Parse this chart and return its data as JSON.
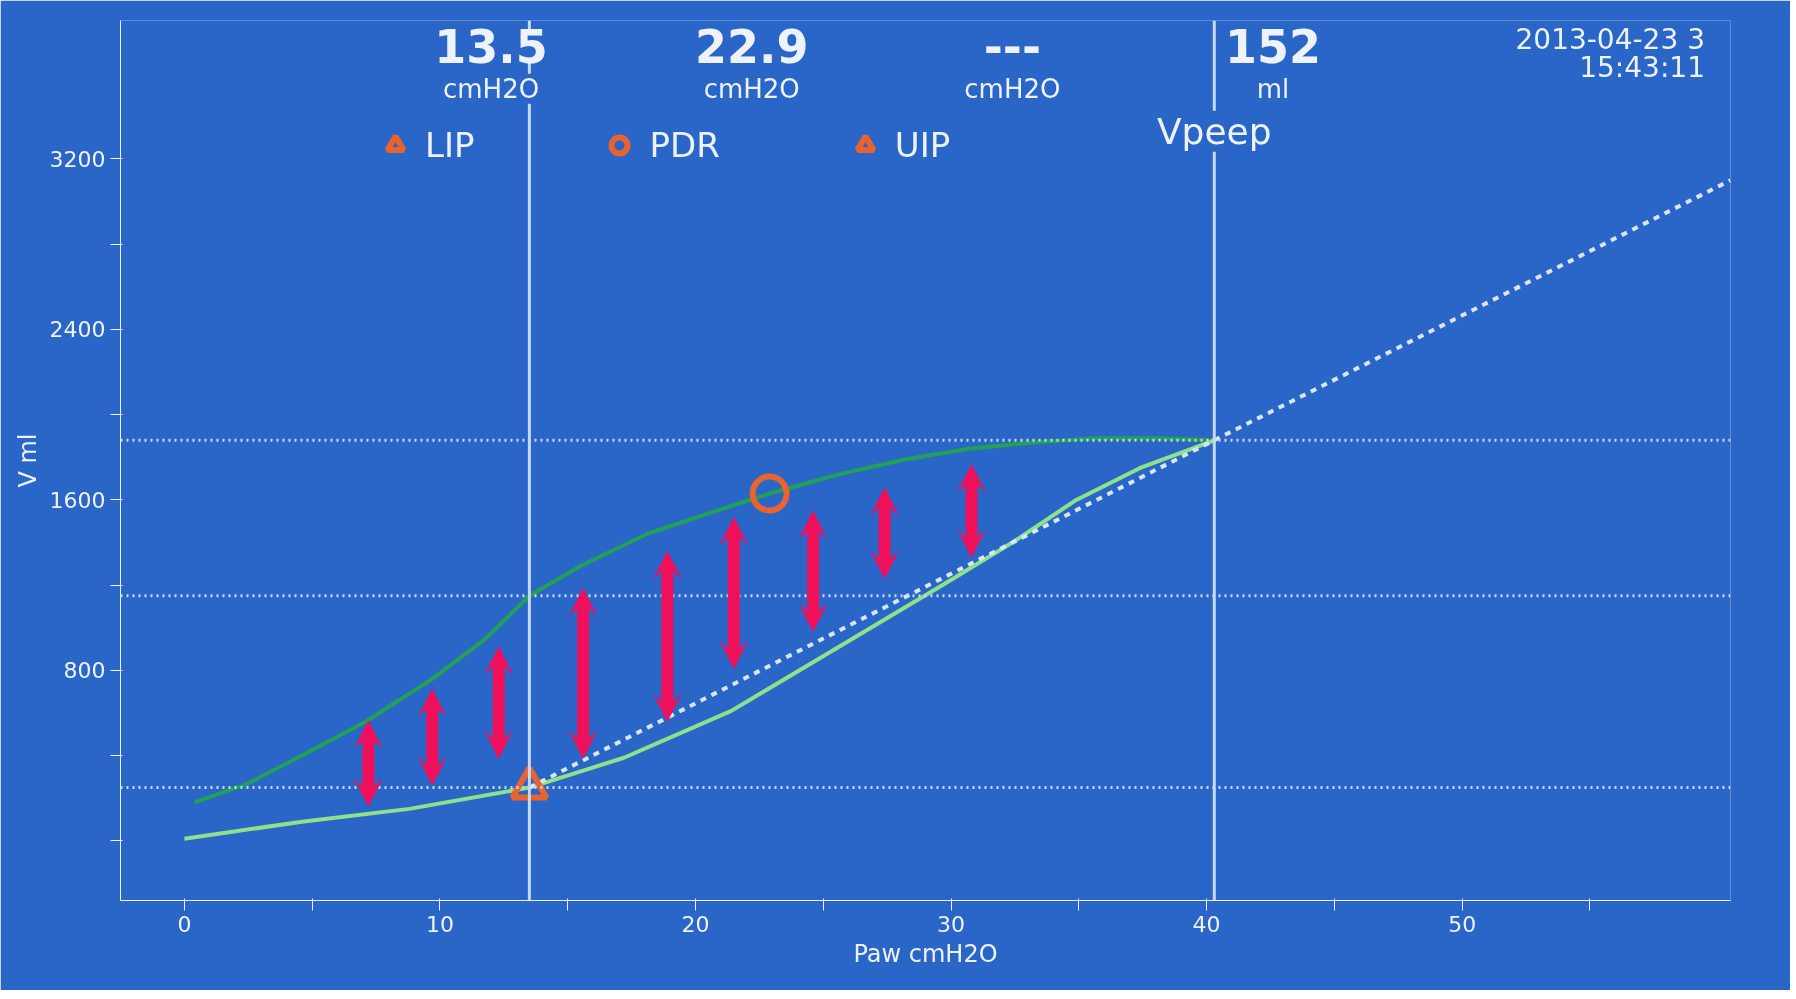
{
  "chart_data": {
    "type": "line",
    "xlabel": "Paw cmH2O",
    "ylabel": "V ml",
    "annotations": [
      "13.5",
      "cmH2O",
      "22.9",
      "cmH2O",
      "---",
      "cmH2O",
      "152",
      "ml",
      "2013-04-23 3",
      "15:43:11"
    ],
    "xlim": [
      -2.5,
      60.5
    ],
    "ylim": [
      -280,
      3850
    ],
    "xticks": [
      0,
      {
        "value": 5,
        "label": null
      },
      10,
      {
        "value": 15,
        "label": null
      },
      20,
      {
        "value": 25,
        "label": null
      },
      30,
      {
        "value": 35,
        "label": null
      },
      40,
      {
        "value": 45,
        "label": null
      },
      50,
      {
        "value": 55,
        "label": null
      }
    ],
    "yticks": [
      {
        "value": 0,
        "label": null
      },
      {
        "value": 400,
        "label": null
      },
      800,
      {
        "value": 1200,
        "label": null
      },
      1600,
      {
        "value": 2000,
        "label": null
      },
      2400,
      {
        "value": 2800,
        "label": null
      },
      3200
    ],
    "grid": false,
    "legend": "top",
    "series": [
      {
        "color": "#22a055",
        "x": [
          0.4,
          2.5,
          4.6,
          7.1,
          9.7,
          11.8,
          13.5,
          15.5,
          18.1,
          20.6,
          22.9,
          25.6,
          28.2,
          30.7,
          33.2,
          35.7,
          38.2,
          40.3
        ],
        "values": [
          180,
          270,
          400,
          560,
          760,
          950,
          1150,
          1290,
          1440,
          1540,
          1630,
          1720,
          1790,
          1840,
          1870,
          1890,
          1890,
          1880
        ]
      },
      {
        "color": "#8ee08a",
        "x": [
          0,
          4.6,
          8.8,
          13.5,
          17.2,
          21.4,
          25.6,
          29.8,
          32.4,
          34.9,
          37.4,
          40.3
        ],
        "values": [
          10,
          90,
          150,
          250,
          390,
          610,
          910,
          1210,
          1400,
          1600,
          1750,
          1880
        ]
      },
      {
        "color": "#d8e6f5",
        "line_style": "dashed",
        "x": [
          13.5,
          40.3,
          60.5
        ],
        "values": [
          250,
          1880,
          3100
        ]
      },
      {
        "type": "scatter",
        "name": "LIP",
        "marker": "triangle",
        "color": "#e8632e",
        "x": [
          13.5
        ],
        "values": [
          250
        ]
      },
      {
        "type": "scatter",
        "name": "PDR",
        "marker": "circle",
        "color": "#e8632e",
        "x": [
          22.9
        ],
        "values": [
          1630
        ]
      },
      {
        "type": "scatter",
        "name": "UIP",
        "marker": "triangle",
        "color": "#e8632e"
      }
    ],
    "ref_lines": [
      {
        "axis": "x",
        "value": 13.5,
        "label": null,
        "color": "#c8d8ee"
      },
      {
        "axis": "x",
        "value": 40.3,
        "label": "Vpeep",
        "color": "#c8d8ee"
      },
      {
        "axis": "y",
        "value": 1880,
        "label": null,
        "color": "#c8d8ee",
        "line_style": "dotted"
      },
      {
        "axis": "y",
        "value": 1150,
        "label": null,
        "color": "#c8d8ee",
        "line_style": "dotted"
      },
      {
        "axis": "y",
        "value": 250,
        "label": null,
        "color": "#c8d8ee",
        "line_style": "dotted"
      }
    ]
  }
}
